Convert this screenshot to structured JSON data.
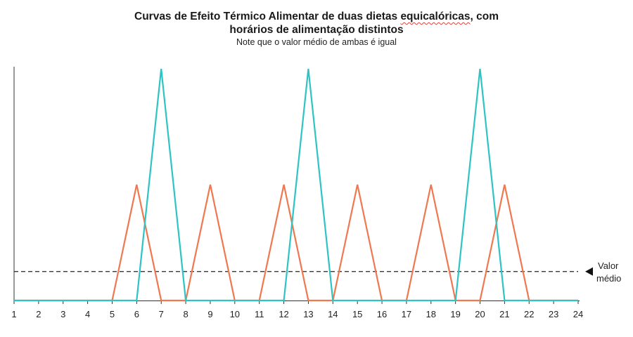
{
  "chart_data": {
    "type": "line",
    "title_part1": "Curvas de Efeito Térmico Alimentar de duas dietas ",
    "title_part2": "equicalóricas",
    "title_part3": ", com",
    "title_line2": "horários de alimentação distintos",
    "subtitle": "Note que o valor médio de ambas é igual",
    "xlabel": "",
    "ylabel": "",
    "xlim": [
      1,
      24
    ],
    "ylim": [
      0,
      1
    ],
    "x_ticks": [
      1,
      2,
      3,
      4,
      5,
      6,
      7,
      8,
      9,
      10,
      11,
      12,
      13,
      14,
      15,
      16,
      17,
      18,
      19,
      20,
      21,
      22,
      23,
      24
    ],
    "grid": false,
    "legend": "none",
    "series": [
      {
        "color": "#f07850",
        "x": [
          1,
          5,
          6,
          7,
          8,
          9,
          10,
          11,
          12,
          13,
          14,
          15,
          16,
          17,
          18,
          19,
          20,
          21,
          22,
          24
        ],
        "y": [
          0,
          0,
          0.5,
          0,
          0,
          0.5,
          0,
          0,
          0.5,
          0,
          0,
          0.5,
          0,
          0,
          0.5,
          0,
          0,
          0.5,
          0,
          0
        ]
      },
      {
        "color": "#2ec4c4",
        "x": [
          1,
          6,
          7,
          8,
          12,
          13,
          14,
          19,
          20,
          21,
          24
        ],
        "y": [
          0,
          0,
          1,
          0,
          0,
          1,
          0,
          0,
          1,
          0,
          0
        ]
      }
    ],
    "reference_line": {
      "y": 0.125,
      "style": "dashed",
      "color": "#222222"
    },
    "annotation": {
      "line1": "Valor",
      "line2": "médio",
      "marker": "left-pointing-triangle"
    }
  }
}
